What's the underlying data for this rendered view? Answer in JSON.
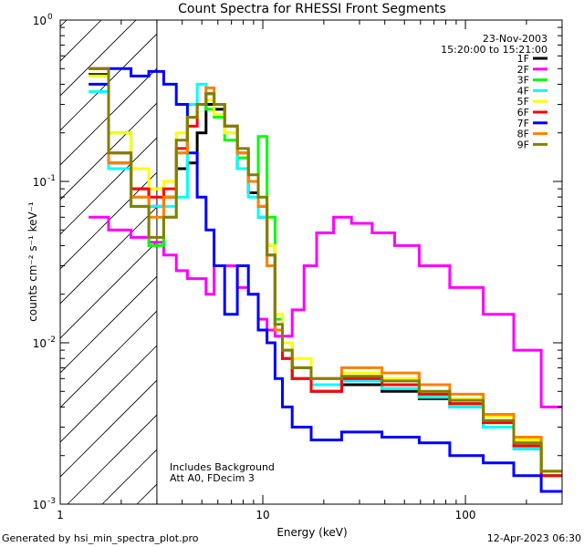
{
  "chart_data": {
    "type": "line",
    "title": "Count Spectra for RHESSI Front Segments",
    "xlabel": "Energy (keV)",
    "ylabel": "counts cm⁻² s⁻¹ keV⁻¹",
    "xscale": "log",
    "yscale": "log",
    "xlim": [
      1,
      300
    ],
    "ylim": [
      0.001,
      1
    ],
    "x_ticks": [
      {
        "v": 1,
        "label": "1"
      },
      {
        "v": 10,
        "label": "10"
      },
      {
        "v": 100,
        "label": "100"
      }
    ],
    "y_ticks": [
      {
        "v": 1,
        "label": "10",
        "exp": "0"
      },
      {
        "v": 0.1,
        "label": "10",
        "exp": "-1"
      },
      {
        "v": 0.01,
        "label": "10",
        "exp": "-2"
      },
      {
        "v": 0.001,
        "label": "10",
        "exp": "-3"
      }
    ],
    "grid": false,
    "legend_position": "top-right",
    "annotations": {
      "date": "23-Nov-2003",
      "time_range": "15:20:00 to 15:21:00",
      "background_note": "Includes Background",
      "attenuator_note": "Att A0, FDecim 3"
    },
    "shaded_region": {
      "x": [
        1,
        3
      ]
    },
    "series": [
      {
        "name": "1F",
        "color": "#000000",
        "x": [
          1.5,
          2,
          2.5,
          3,
          3.5,
          4,
          4.5,
          5,
          5.5,
          6,
          7,
          8,
          9,
          10,
          11,
          12,
          13,
          15,
          20,
          30,
          50,
          70,
          100,
          150,
          200,
          280
        ],
        "y": [
          0.46,
          0.13,
          0.09,
          0.07,
          0.08,
          0.12,
          0.13,
          0.2,
          0.3,
          0.28,
          0.22,
          0.12,
          0.085,
          0.06,
          0.04,
          0.012,
          0.008,
          0.006,
          0.005,
          0.0055,
          0.005,
          0.0045,
          0.004,
          0.003,
          0.0022,
          0.0015
        ]
      },
      {
        "name": "2F",
        "color": "#ff00ff",
        "x": [
          1.5,
          2,
          2.5,
          3,
          3.5,
          4,
          4.5,
          5,
          5.5,
          6,
          7,
          8,
          9,
          10,
          11,
          12,
          13,
          15,
          17,
          20,
          25,
          30,
          40,
          50,
          70,
          100,
          150,
          200,
          280
        ],
        "y": [
          0.06,
          0.05,
          0.045,
          0.042,
          0.035,
          0.028,
          0.025,
          0.025,
          0.02,
          0.03,
          0.03,
          0.022,
          0.02,
          0.014,
          0.012,
          0.011,
          0.011,
          0.016,
          0.03,
          0.048,
          0.06,
          0.055,
          0.048,
          0.04,
          0.03,
          0.022,
          0.015,
          0.009,
          0.004
        ]
      },
      {
        "name": "3F",
        "color": "#00ff00",
        "x": [
          1.5,
          2,
          2.5,
          3,
          3.5,
          4,
          4.5,
          5,
          5.5,
          6,
          7,
          8,
          9,
          10,
          11,
          12,
          13,
          15,
          20,
          30,
          50,
          70,
          100,
          150,
          200,
          280
        ],
        "y": [
          0.45,
          0.2,
          0.07,
          0.04,
          0.06,
          0.15,
          0.25,
          0.3,
          0.28,
          0.25,
          0.18,
          0.14,
          0.1,
          0.19,
          0.06,
          0.014,
          0.01,
          0.007,
          0.0055,
          0.006,
          0.0055,
          0.0048,
          0.0042,
          0.0032,
          0.0024,
          0.0015
        ]
      },
      {
        "name": "4F",
        "color": "#00ffff",
        "x": [
          1.5,
          2,
          2.5,
          3,
          3.5,
          4,
          4.5,
          5,
          5.5,
          6,
          7,
          8,
          9,
          10,
          11,
          12,
          13,
          15,
          20,
          30,
          50,
          70,
          100,
          150,
          200,
          280
        ],
        "y": [
          0.36,
          0.12,
          0.08,
          0.07,
          0.07,
          0.08,
          0.3,
          0.4,
          0.35,
          0.3,
          0.2,
          0.12,
          0.08,
          0.06,
          0.03,
          0.012,
          0.008,
          0.006,
          0.0055,
          0.0058,
          0.0052,
          0.0046,
          0.004,
          0.003,
          0.0022,
          0.0015
        ]
      },
      {
        "name": "5F",
        "color": "#ffff00",
        "x": [
          1.5,
          2,
          2.5,
          3,
          3.5,
          4,
          4.5,
          5,
          5.5,
          6,
          7,
          8,
          9,
          10,
          11,
          12,
          13,
          15,
          20,
          30,
          50,
          70,
          100,
          150,
          200,
          280
        ],
        "y": [
          0.45,
          0.2,
          0.12,
          0.09,
          0.1,
          0.2,
          0.25,
          0.3,
          0.32,
          0.26,
          0.2,
          0.15,
          0.1,
          0.08,
          0.04,
          0.015,
          0.01,
          0.008,
          0.006,
          0.0065,
          0.006,
          0.005,
          0.0045,
          0.0035,
          0.0025,
          0.0016
        ]
      },
      {
        "name": "6F",
        "color": "#ff0000",
        "x": [
          1.5,
          2,
          2.5,
          3,
          3.5,
          4,
          4.5,
          5,
          5.5,
          6,
          7,
          8,
          9,
          10,
          11,
          12,
          13,
          15,
          20,
          30,
          50,
          70,
          100,
          150,
          200,
          280
        ],
        "y": [
          0.5,
          0.15,
          0.09,
          0.08,
          0.09,
          0.16,
          0.22,
          0.3,
          0.35,
          0.3,
          0.22,
          0.15,
          0.1,
          0.07,
          0.035,
          0.012,
          0.008,
          0.006,
          0.005,
          0.006,
          0.0055,
          0.0048,
          0.0042,
          0.0032,
          0.0023,
          0.0015
        ]
      },
      {
        "name": "7F",
        "color": "#0000ff",
        "x": [
          1.5,
          2,
          2.5,
          3,
          3.5,
          4,
          4.5,
          5,
          5.5,
          6,
          7,
          8,
          9,
          10,
          11,
          12,
          13,
          15,
          20,
          30,
          50,
          70,
          100,
          150,
          200,
          280
        ],
        "y": [
          0.4,
          0.5,
          0.45,
          0.48,
          0.4,
          0.3,
          0.15,
          0.08,
          0.05,
          0.03,
          0.015,
          0.03,
          0.02,
          0.012,
          0.01,
          0.006,
          0.004,
          0.003,
          0.0025,
          0.0028,
          0.0026,
          0.0024,
          0.002,
          0.0018,
          0.0015,
          0.0012
        ]
      },
      {
        "name": "8F",
        "color": "#ff8000",
        "x": [
          1.5,
          2,
          2.5,
          3,
          3.5,
          4,
          4.5,
          5,
          5.5,
          6,
          7,
          8,
          9,
          10,
          11,
          12,
          13,
          15,
          20,
          30,
          50,
          70,
          100,
          150,
          200,
          280
        ],
        "y": [
          0.5,
          0.13,
          0.08,
          0.06,
          0.08,
          0.15,
          0.25,
          0.3,
          0.38,
          0.3,
          0.22,
          0.15,
          0.1,
          0.07,
          0.03,
          0.012,
          0.009,
          0.007,
          0.006,
          0.007,
          0.0065,
          0.0055,
          0.0048,
          0.0036,
          0.0026,
          0.0016
        ]
      },
      {
        "name": "9F",
        "color": "#808000",
        "x": [
          1.5,
          2,
          2.5,
          3,
          3.5,
          4,
          4.5,
          5,
          5.5,
          6,
          7,
          8,
          9,
          10,
          11,
          12,
          13,
          15,
          20,
          30,
          50,
          70,
          100,
          150,
          200,
          280
        ],
        "y": [
          0.5,
          0.15,
          0.07,
          0.045,
          0.06,
          0.18,
          0.25,
          0.3,
          0.35,
          0.3,
          0.22,
          0.16,
          0.11,
          0.08,
          0.035,
          0.013,
          0.009,
          0.007,
          0.006,
          0.0062,
          0.0058,
          0.005,
          0.0044,
          0.0033,
          0.0024,
          0.0016
        ]
      }
    ]
  },
  "footer": {
    "left": "Generated by hsi_min_spectra_plot.pro",
    "right": "12-Apr-2023 06:30"
  }
}
